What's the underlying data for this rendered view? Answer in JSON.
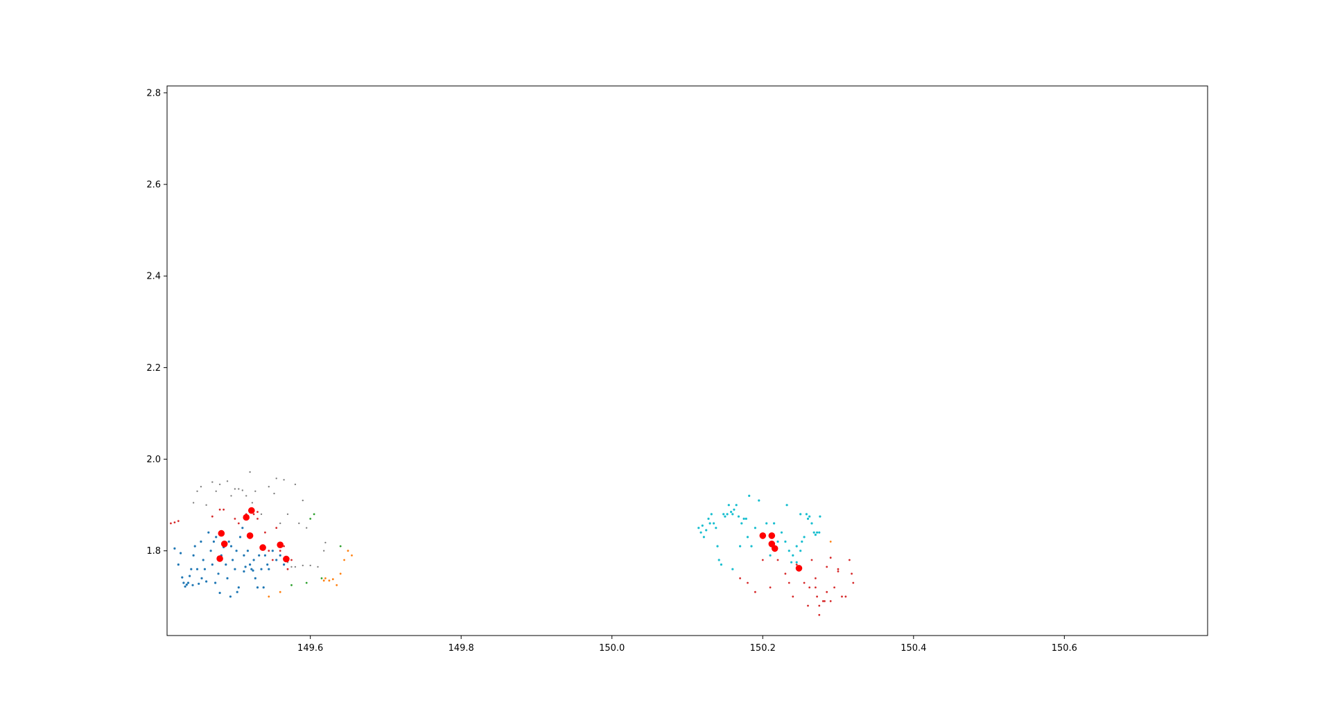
{
  "chart_data": {
    "type": "scatter",
    "title": "",
    "xlabel": "",
    "ylabel": "",
    "xlim": [
      149.41,
      150.79
    ],
    "ylim": [
      1.615,
      2.815
    ],
    "xticks": [
      149.6,
      149.8,
      150.0,
      150.2,
      150.4,
      150.6
    ],
    "xtick_labels": [
      "149.6",
      "149.8",
      "150.0",
      "150.2",
      "150.4",
      "150.6"
    ],
    "yticks": [
      1.8,
      2.0,
      2.2,
      2.4,
      2.6,
      2.8
    ],
    "ytick_labels": [
      "1.8",
      "2.0",
      "2.2",
      "2.4",
      "2.6",
      "2.8"
    ],
    "grid": false,
    "legend": "none",
    "series": [
      {
        "color": "#1f77b4",
        "marker_size": 1.6,
        "points": [
          [
            149.43,
            1.742
          ],
          [
            149.432,
            1.73
          ],
          [
            149.436,
            1.726
          ],
          [
            149.434,
            1.722
          ],
          [
            149.438,
            1.73
          ],
          [
            149.44,
            1.745
          ],
          [
            149.442,
            1.76
          ],
          [
            149.445,
            1.79
          ],
          [
            149.447,
            1.81
          ],
          [
            149.45,
            1.76
          ],
          [
            149.452,
            1.728
          ],
          [
            149.455,
            1.82
          ],
          [
            149.458,
            1.78
          ],
          [
            149.46,
            1.76
          ],
          [
            149.462,
            1.733
          ],
          [
            149.465,
            1.84
          ],
          [
            149.468,
            1.8
          ],
          [
            149.47,
            1.77
          ],
          [
            149.472,
            1.82
          ],
          [
            149.475,
            1.83
          ],
          [
            149.478,
            1.75
          ],
          [
            149.48,
            1.708
          ],
          [
            149.482,
            1.79
          ],
          [
            149.485,
            1.808
          ],
          [
            149.488,
            1.77
          ],
          [
            149.49,
            1.74
          ],
          [
            149.492,
            1.82
          ],
          [
            149.495,
            1.81
          ],
          [
            149.497,
            1.78
          ],
          [
            149.5,
            1.76
          ],
          [
            149.502,
            1.8
          ],
          [
            149.505,
            1.72
          ],
          [
            149.507,
            1.83
          ],
          [
            149.51,
            1.85
          ],
          [
            149.512,
            1.79
          ],
          [
            149.514,
            1.765
          ],
          [
            149.517,
            1.8
          ],
          [
            149.52,
            1.77
          ],
          [
            149.522,
            1.76
          ],
          [
            149.524,
            1.757
          ],
          [
            149.527,
            1.74
          ],
          [
            149.53,
            1.72
          ],
          [
            149.532,
            1.79
          ],
          [
            149.535,
            1.76
          ],
          [
            149.538,
            1.72
          ],
          [
            149.54,
            1.79
          ],
          [
            149.543,
            1.77
          ],
          [
            149.545,
            1.76
          ],
          [
            149.55,
            1.8
          ],
          [
            149.555,
            1.78
          ],
          [
            149.56,
            1.79
          ],
          [
            149.565,
            1.77
          ],
          [
            149.42,
            1.805
          ],
          [
            149.425,
            1.77
          ],
          [
            149.428,
            1.795
          ],
          [
            149.444,
            1.725
          ],
          [
            149.456,
            1.74
          ],
          [
            149.474,
            1.73
          ],
          [
            149.494,
            1.7
          ],
          [
            149.503,
            1.71
          ],
          [
            149.512,
            1.755
          ],
          [
            149.518,
            1.83
          ],
          [
            149.525,
            1.78
          ]
        ]
      },
      {
        "color": "#7f7f7f",
        "marker_size": 1.2,
        "points": [
          [
            149.445,
            1.905
          ],
          [
            149.45,
            1.93
          ],
          [
            149.455,
            1.94
          ],
          [
            149.462,
            1.9
          ],
          [
            149.47,
            1.95
          ],
          [
            149.475,
            1.93
          ],
          [
            149.48,
            1.945
          ],
          [
            149.49,
            1.952
          ],
          [
            149.495,
            1.92
          ],
          [
            149.5,
            1.935
          ],
          [
            149.505,
            1.935
          ],
          [
            149.51,
            1.932
          ],
          [
            149.515,
            1.92
          ],
          [
            149.52,
            1.972
          ],
          [
            149.523,
            1.905
          ],
          [
            149.527,
            1.93
          ],
          [
            149.535,
            1.88
          ],
          [
            149.545,
            1.94
          ],
          [
            149.552,
            1.925
          ],
          [
            149.555,
            1.958
          ],
          [
            149.56,
            1.86
          ],
          [
            149.565,
            1.955
          ],
          [
            149.57,
            1.88
          ],
          [
            149.58,
            1.945
          ],
          [
            149.585,
            1.86
          ],
          [
            149.59,
            1.91
          ],
          [
            149.595,
            1.85
          ],
          [
            149.57,
            1.775
          ],
          [
            149.575,
            1.765
          ],
          [
            149.58,
            1.765
          ],
          [
            149.59,
            1.768
          ],
          [
            149.6,
            1.768
          ],
          [
            149.61,
            1.765
          ],
          [
            149.618,
            1.8
          ],
          [
            149.62,
            1.818
          ]
        ]
      },
      {
        "color": "#d62728",
        "marker_size": 1.4,
        "points": [
          [
            149.415,
            1.86
          ],
          [
            149.42,
            1.862
          ],
          [
            149.425,
            1.865
          ],
          [
            149.47,
            1.875
          ],
          [
            149.48,
            1.89
          ],
          [
            149.485,
            1.89
          ],
          [
            149.5,
            1.87
          ],
          [
            149.505,
            1.86
          ],
          [
            149.515,
            1.88
          ],
          [
            149.525,
            1.88
          ],
          [
            149.53,
            1.87
          ],
          [
            149.54,
            1.84
          ],
          [
            149.545,
            1.8
          ],
          [
            149.55,
            1.78
          ],
          [
            149.555,
            1.85
          ],
          [
            149.56,
            1.8
          ],
          [
            149.565,
            1.81
          ],
          [
            149.57,
            1.76
          ],
          [
            149.575,
            1.78
          ],
          [
            149.53,
            1.885
          ],
          [
            150.17,
            1.74
          ],
          [
            150.18,
            1.73
          ],
          [
            150.19,
            1.71
          ],
          [
            150.2,
            1.78
          ],
          [
            150.21,
            1.72
          ],
          [
            150.22,
            1.78
          ],
          [
            150.23,
            1.75
          ],
          [
            150.235,
            1.73
          ],
          [
            150.24,
            1.7
          ],
          [
            150.245,
            1.77
          ],
          [
            150.25,
            1.76
          ],
          [
            150.255,
            1.73
          ],
          [
            150.26,
            1.68
          ],
          [
            150.262,
            1.72
          ],
          [
            150.265,
            1.78
          ],
          [
            150.27,
            1.74
          ],
          [
            150.272,
            1.7
          ],
          [
            150.275,
            1.68
          ],
          [
            150.28,
            1.69
          ],
          [
            150.282,
            1.69
          ],
          [
            150.285,
            1.71
          ],
          [
            150.29,
            1.69
          ],
          [
            150.295,
            1.72
          ],
          [
            150.3,
            1.76
          ],
          [
            150.305,
            1.7
          ],
          [
            150.31,
            1.7
          ],
          [
            150.315,
            1.78
          ],
          [
            150.318,
            1.75
          ],
          [
            150.32,
            1.73
          ],
          [
            150.29,
            1.785
          ],
          [
            150.3,
            1.755
          ],
          [
            150.285,
            1.765
          ],
          [
            150.275,
            1.66
          ],
          [
            150.27,
            1.72
          ]
        ]
      },
      {
        "color": "#ff7f0e",
        "marker_size": 1.4,
        "points": [
          [
            149.56,
            1.71
          ],
          [
            149.62,
            1.74
          ],
          [
            149.625,
            1.735
          ],
          [
            149.63,
            1.738
          ],
          [
            149.635,
            1.725
          ],
          [
            149.64,
            1.75
          ],
          [
            149.645,
            1.78
          ],
          [
            149.65,
            1.8
          ],
          [
            149.655,
            1.79
          ],
          [
            149.618,
            1.735
          ],
          [
            150.29,
            1.82
          ],
          [
            149.545,
            1.7
          ]
        ]
      },
      {
        "color": "#2ca02c",
        "marker_size": 1.4,
        "points": [
          [
            149.575,
            1.725
          ],
          [
            149.595,
            1.73
          ],
          [
            149.6,
            1.87
          ],
          [
            149.605,
            1.88
          ],
          [
            149.64,
            1.81
          ],
          [
            149.615,
            1.74
          ]
        ]
      },
      {
        "color": "#17becf",
        "marker_size": 1.6,
        "points": [
          [
            150.12,
            1.855
          ],
          [
            150.125,
            1.845
          ],
          [
            150.128,
            1.87
          ],
          [
            150.13,
            1.86
          ],
          [
            150.132,
            1.88
          ],
          [
            150.135,
            1.86
          ],
          [
            150.138,
            1.85
          ],
          [
            150.14,
            1.81
          ],
          [
            150.142,
            1.78
          ],
          [
            150.145,
            1.77
          ],
          [
            150.148,
            1.88
          ],
          [
            150.15,
            1.875
          ],
          [
            150.153,
            1.88
          ],
          [
            150.155,
            1.9
          ],
          [
            150.158,
            1.885
          ],
          [
            150.16,
            1.88
          ],
          [
            150.162,
            1.89
          ],
          [
            150.165,
            1.9
          ],
          [
            150.168,
            1.875
          ],
          [
            150.17,
            1.81
          ],
          [
            150.172,
            1.86
          ],
          [
            150.175,
            1.87
          ],
          [
            150.178,
            1.87
          ],
          [
            150.18,
            1.83
          ],
          [
            150.182,
            1.92
          ],
          [
            150.185,
            1.81
          ],
          [
            150.19,
            1.85
          ],
          [
            150.195,
            1.91
          ],
          [
            150.2,
            1.83
          ],
          [
            150.205,
            1.86
          ],
          [
            150.21,
            1.79
          ],
          [
            150.215,
            1.86
          ],
          [
            150.22,
            1.82
          ],
          [
            150.225,
            1.84
          ],
          [
            150.23,
            1.82
          ],
          [
            150.232,
            1.9
          ],
          [
            150.235,
            1.8
          ],
          [
            150.24,
            1.79
          ],
          [
            150.245,
            1.81
          ],
          [
            150.25,
            1.88
          ],
          [
            150.252,
            1.82
          ],
          [
            150.255,
            1.83
          ],
          [
            150.258,
            1.88
          ],
          [
            150.26,
            1.87
          ],
          [
            150.262,
            1.875
          ],
          [
            150.265,
            1.86
          ],
          [
            150.268,
            1.84
          ],
          [
            150.27,
            1.835
          ],
          [
            150.272,
            1.84
          ],
          [
            150.275,
            1.84
          ],
          [
            150.276,
            1.875
          ],
          [
            150.115,
            1.85
          ],
          [
            150.118,
            1.84
          ],
          [
            150.122,
            1.83
          ],
          [
            150.16,
            1.76
          ],
          [
            150.25,
            1.8
          ],
          [
            150.245,
            1.775
          ],
          [
            150.238,
            1.775
          ]
        ]
      },
      {
        "color": "#ff0000",
        "marker_size": 4.8,
        "points": [
          [
            149.48,
            1.783
          ],
          [
            149.482,
            1.838
          ],
          [
            149.486,
            1.815
          ],
          [
            149.515,
            1.873
          ],
          [
            149.52,
            1.833
          ],
          [
            149.522,
            1.888
          ],
          [
            149.537,
            1.807
          ],
          [
            149.56,
            1.813
          ],
          [
            149.568,
            1.782
          ],
          [
            150.2,
            1.833
          ],
          [
            150.212,
            1.833
          ],
          [
            150.212,
            1.815
          ],
          [
            150.216,
            1.805
          ],
          [
            150.248,
            1.762
          ]
        ]
      }
    ]
  }
}
